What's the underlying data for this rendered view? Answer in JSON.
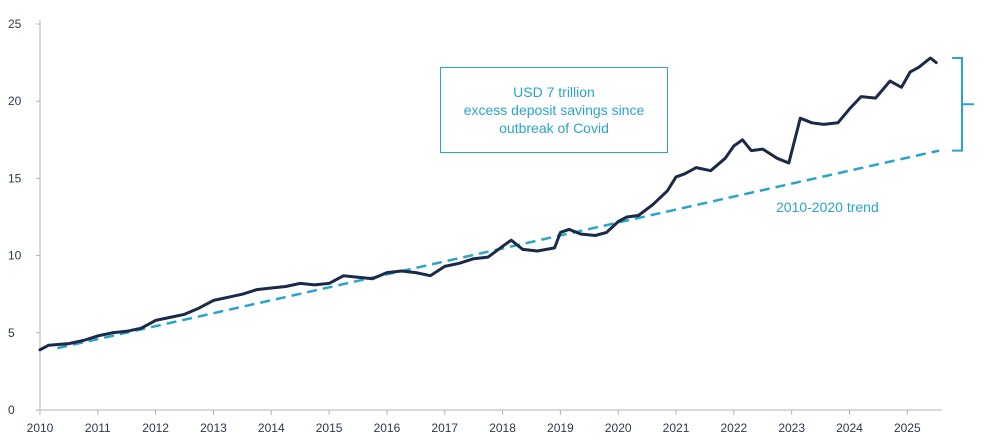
{
  "chart_data": {
    "type": "line",
    "title": "",
    "xlabel": "",
    "ylabel": "",
    "xlim": [
      2010,
      2025.6
    ],
    "ylim": [
      0,
      25
    ],
    "yticks": [
      0,
      5,
      10,
      15,
      20,
      25
    ],
    "xticks": [
      2010,
      2011,
      2012,
      2013,
      2014,
      2015,
      2016,
      2017,
      2018,
      2019,
      2020,
      2021,
      2022,
      2023,
      2024,
      2025
    ],
    "grid": false,
    "colors": {
      "actual": "#1b2a48",
      "trend": "#2aa4c9",
      "annotation": "#2aa4c9",
      "axis": "#b3b3b3"
    },
    "series": [
      {
        "key": "actual",
        "style": "solid",
        "x": [
          2010.0,
          2010.15,
          2010.5,
          2010.75,
          2011.0,
          2011.25,
          2011.5,
          2011.75,
          2012.0,
          2012.25,
          2012.5,
          2012.75,
          2013.0,
          2013.25,
          2013.5,
          2013.75,
          2014.0,
          2014.25,
          2014.5,
          2014.75,
          2015.0,
          2015.25,
          2015.5,
          2015.75,
          2016.0,
          2016.25,
          2016.5,
          2016.75,
          2017.0,
          2017.25,
          2017.5,
          2017.75,
          2018.0,
          2018.15,
          2018.35,
          2018.6,
          2018.9,
          2019.0,
          2019.15,
          2019.35,
          2019.6,
          2019.8,
          2020.0,
          2020.15,
          2020.35,
          2020.6,
          2020.85,
          2021.0,
          2021.15,
          2021.35,
          2021.6,
          2021.85,
          2022.0,
          2022.15,
          2022.3,
          2022.5,
          2022.75,
          2022.95,
          2023.15,
          2023.35,
          2023.55,
          2023.8,
          2024.0,
          2024.2,
          2024.45,
          2024.7,
          2024.9,
          2025.05,
          2025.2,
          2025.4,
          2025.5
        ],
        "values": [
          3.9,
          4.2,
          4.3,
          4.5,
          4.8,
          5.0,
          5.1,
          5.3,
          5.8,
          6.0,
          6.2,
          6.6,
          7.1,
          7.3,
          7.5,
          7.8,
          7.9,
          8.0,
          8.2,
          8.1,
          8.2,
          8.7,
          8.6,
          8.5,
          8.9,
          9.0,
          8.9,
          8.7,
          9.3,
          9.5,
          9.8,
          9.9,
          10.6,
          11.0,
          10.4,
          10.3,
          10.5,
          11.5,
          11.7,
          11.4,
          11.3,
          11.5,
          12.2,
          12.5,
          12.6,
          13.3,
          14.2,
          15.1,
          15.3,
          15.7,
          15.5,
          16.3,
          17.1,
          17.5,
          16.8,
          16.9,
          16.3,
          16.0,
          18.9,
          18.6,
          18.5,
          18.6,
          19.5,
          20.3,
          20.2,
          21.3,
          20.9,
          21.9,
          22.2,
          22.8,
          22.5
        ]
      },
      {
        "key": "trend",
        "style": "dashed",
        "x": [
          2010.3,
          2025.55
        ],
        "values": [
          4.0,
          16.8
        ]
      }
    ],
    "annotations": {
      "callout": "USD 7 trillion\nexcess deposit savings since\noutbreak of Covid",
      "trend_label": "2010-2020 trend"
    }
  }
}
